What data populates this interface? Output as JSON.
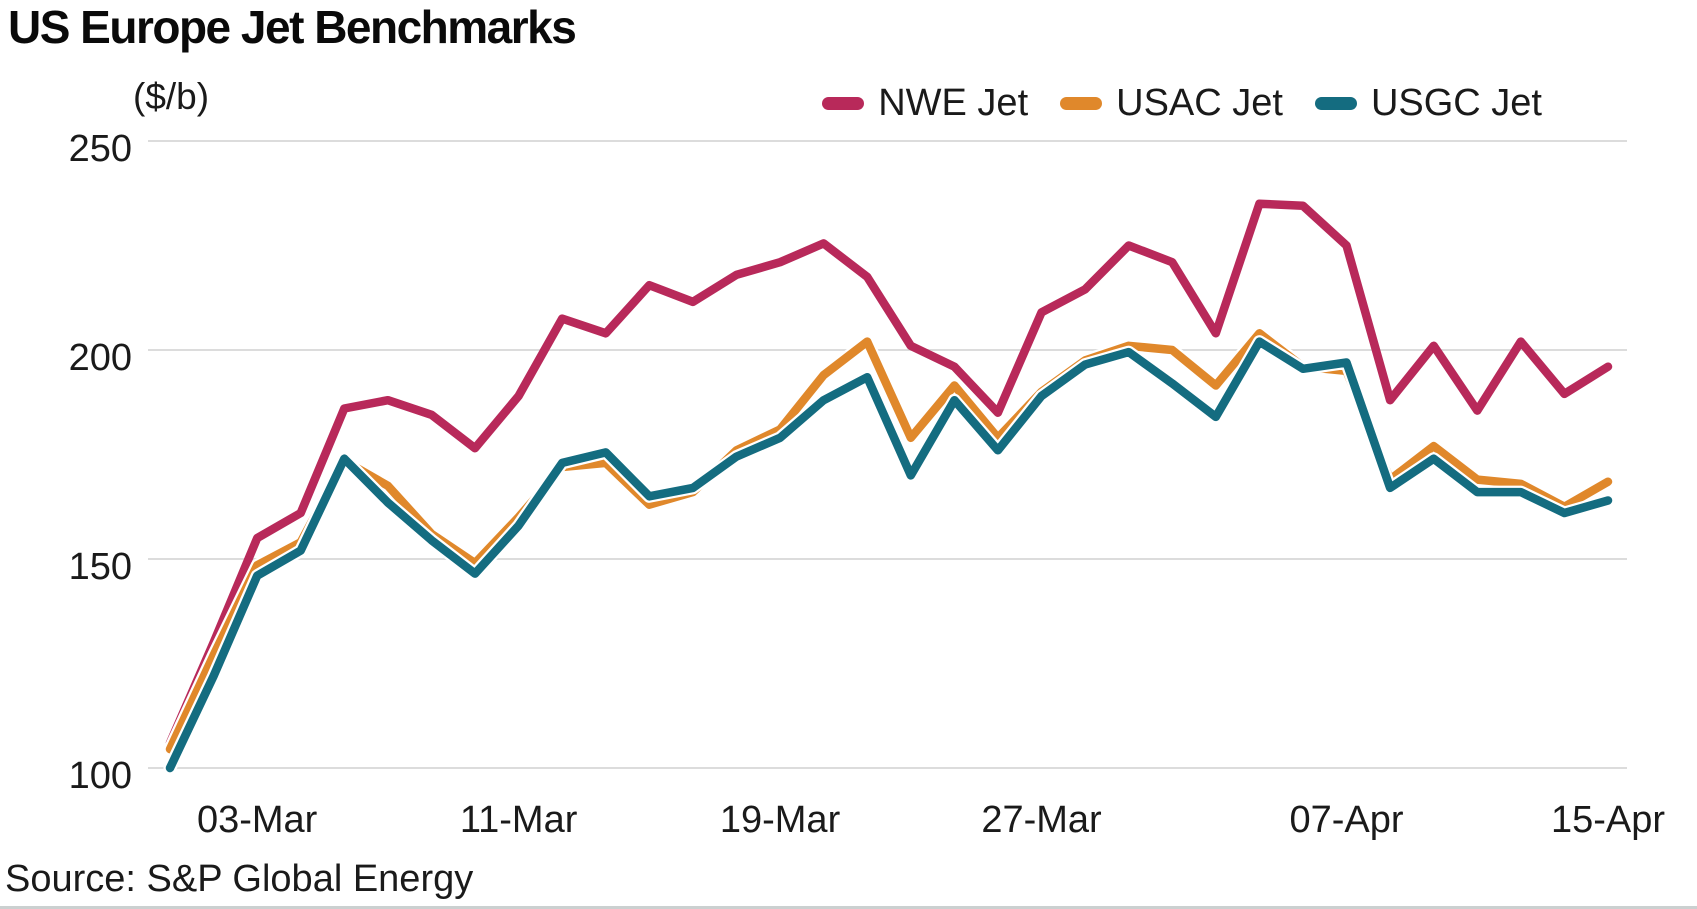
{
  "title": "US Europe Jet Benchmarks",
  "unit_label": "($/b)",
  "source": "Source: S&P Global Energy",
  "colors": {
    "nwe": "#B8295A",
    "usac": "#E0882B",
    "usgc": "#146C80",
    "grid": "#dcdcdc",
    "text": "#1a1a1a"
  },
  "legend": [
    {
      "label": "NWE Jet",
      "color": "#B8295A"
    },
    {
      "label": "USAC Jet",
      "color": "#E0882B"
    },
    {
      "label": "USGC Jet",
      "color": "#146C80"
    }
  ],
  "chart_data": {
    "type": "line",
    "title": "US Europe Jet Benchmarks",
    "ylabel": "($/b)",
    "ylim": [
      100,
      250
    ],
    "y_ticks": [
      250,
      200,
      150,
      100
    ],
    "grid": "horizontal",
    "legend_position": "top-right",
    "x": [
      "27-Feb",
      "28-Feb",
      "03-Mar",
      "04-Mar",
      "05-Mar",
      "06-Mar",
      "07-Mar",
      "10-Mar",
      "11-Mar",
      "12-Mar",
      "13-Mar",
      "14-Mar",
      "17-Mar",
      "18-Mar",
      "19-Mar",
      "20-Mar",
      "21-Mar",
      "24-Mar",
      "25-Mar",
      "26-Mar",
      "27-Mar",
      "28-Mar",
      "31-Mar",
      "01-Apr",
      "02-Apr",
      "03-Apr",
      "04-Apr",
      "07-Apr",
      "08-Apr",
      "09-Apr",
      "10-Apr",
      "11-Apr",
      "14-Apr",
      "15-Apr"
    ],
    "x_ticks": [
      {
        "label": "03-Mar",
        "index": 2
      },
      {
        "label": "11-Mar",
        "index": 8
      },
      {
        "label": "19-Mar",
        "index": 14
      },
      {
        "label": "27-Mar",
        "index": 20
      },
      {
        "label": "07-Apr",
        "index": 27
      },
      {
        "label": "15-Apr",
        "index": 33
      }
    ],
    "series": [
      {
        "name": "NWE Jet",
        "color": "#B8295A",
        "values": [
          106,
          130,
          155,
          161,
          186,
          188,
          184.5,
          176.5,
          189,
          207.5,
          204,
          215.5,
          211.5,
          218,
          221,
          225.5,
          217.5,
          201,
          196,
          185,
          209,
          214.5,
          225,
          221,
          204,
          235,
          234.5,
          225,
          188,
          201,
          185.5,
          202,
          189.5,
          196
        ]
      },
      {
        "name": "USAC Jet",
        "color": "#E0882B",
        "values": [
          104.5,
          127,
          148.5,
          154,
          173.5,
          167.5,
          156,
          149,
          160,
          172,
          173,
          163,
          166,
          176,
          181,
          194,
          202,
          179,
          191.5,
          179,
          190,
          197.5,
          201,
          200,
          191.5,
          204,
          196,
          195,
          169,
          177,
          169,
          168,
          162.5,
          168.5
        ]
      },
      {
        "name": "USGC Jet",
        "color": "#146C80",
        "values": [
          100,
          122,
          146,
          152,
          174,
          163.5,
          154.5,
          146.5,
          158,
          173,
          175.5,
          165,
          167,
          174.5,
          179,
          188,
          193.5,
          170,
          188,
          176,
          189,
          196.5,
          199.5,
          192,
          184,
          202,
          195.5,
          197,
          167,
          174,
          166,
          166,
          161,
          164
        ]
      }
    ]
  }
}
